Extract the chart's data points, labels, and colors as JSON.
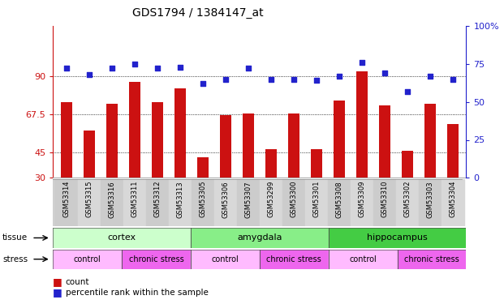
{
  "title": "GDS1794 / 1384147_at",
  "samples": [
    "GSM53314",
    "GSM53315",
    "GSM53316",
    "GSM53311",
    "GSM53312",
    "GSM53313",
    "GSM53305",
    "GSM53306",
    "GSM53307",
    "GSM53299",
    "GSM53300",
    "GSM53301",
    "GSM53308",
    "GSM53309",
    "GSM53310",
    "GSM53302",
    "GSM53303",
    "GSM53304"
  ],
  "counts": [
    75,
    58,
    74,
    87,
    75,
    83,
    42,
    67,
    68,
    47,
    68,
    47,
    76,
    93,
    73,
    46,
    74,
    62
  ],
  "percentiles": [
    72,
    68,
    72,
    75,
    72,
    73,
    62,
    65,
    72,
    65,
    65,
    64,
    67,
    76,
    69,
    57,
    67,
    65
  ],
  "bar_color": "#cc1111",
  "dot_color": "#2222cc",
  "ylim_left": [
    30,
    120
  ],
  "ylim_right": [
    0,
    100
  ],
  "yticks_left": [
    30,
    45,
    67.5,
    90
  ],
  "yticks_right": [
    0,
    25,
    50,
    75,
    100
  ],
  "tissue_groups": [
    {
      "label": "cortex",
      "start": 0,
      "end": 6,
      "color": "#ccffcc"
    },
    {
      "label": "amygdala",
      "start": 6,
      "end": 12,
      "color": "#88ee88"
    },
    {
      "label": "hippocampus",
      "start": 12,
      "end": 18,
      "color": "#44cc44"
    }
  ],
  "stress_groups": [
    {
      "label": "control",
      "start": 0,
      "end": 3,
      "color": "#ffbbff"
    },
    {
      "label": "chronic stress",
      "start": 3,
      "end": 6,
      "color": "#ee66ee"
    },
    {
      "label": "control",
      "start": 6,
      "end": 9,
      "color": "#ffbbff"
    },
    {
      "label": "chronic stress",
      "start": 9,
      "end": 12,
      "color": "#ee66ee"
    },
    {
      "label": "control",
      "start": 12,
      "end": 15,
      "color": "#ffbbff"
    },
    {
      "label": "chronic stress",
      "start": 15,
      "end": 18,
      "color": "#ee66ee"
    }
  ],
  "legend_items": [
    {
      "label": "count",
      "color": "#cc1111"
    },
    {
      "label": "percentile rank within the sample",
      "color": "#2222cc"
    }
  ],
  "background_color": "#ffffff",
  "title_fontsize": 10,
  "tick_fontsize": 8,
  "bar_width": 0.5,
  "ylabel_left_color": "#cc1111",
  "ylabel_right_color": "#2222cc"
}
